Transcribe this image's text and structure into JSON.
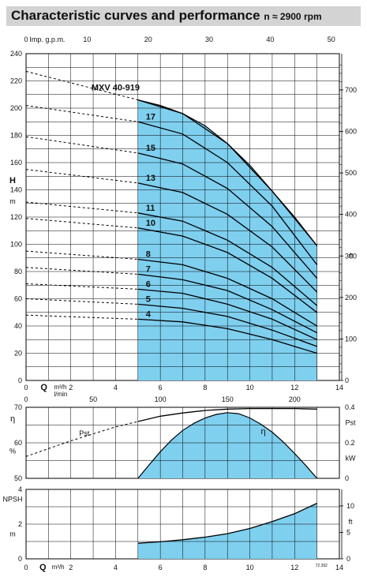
{
  "header": {
    "title": "Characteristic curves and performance",
    "speed": "n ≈ 2900 rpm"
  },
  "colors": {
    "fill": "#7fcfef",
    "grid": "#000000",
    "curve": "#000000",
    "header_bg": "#d3d3d3"
  },
  "chart_data": [
    {
      "type": "line",
      "name": "head",
      "model_label": "MXV 40-919",
      "xlabel": "Q",
      "xlim": [
        0,
        14
      ],
      "x_ticks": [
        0,
        2,
        4,
        6,
        8,
        10,
        12,
        14
      ],
      "top_axis_label": "Imp. g.p.m.",
      "top_ticks": [
        0,
        10,
        20,
        30,
        40,
        50
      ],
      "ylabel": "H",
      "yunit": "m",
      "ylim": [
        0,
        240
      ],
      "y_ticks": [
        0,
        20,
        40,
        60,
        80,
        100,
        120,
        140,
        160,
        180,
        200,
        220,
        240
      ],
      "right_axis_label": "ft",
      "right_ticks": [
        0,
        100,
        200,
        300,
        400,
        500,
        600,
        700
      ],
      "operating_range": [
        5,
        13
      ],
      "series": [
        {
          "name": "4",
          "x": [
            0,
            5,
            7,
            9,
            11,
            13
          ],
          "y": [
            48,
            45,
            43,
            38,
            30,
            20
          ]
        },
        {
          "name": "5",
          "x": [
            0,
            5,
            7,
            9,
            11,
            13
          ],
          "y": [
            60,
            56,
            53,
            47,
            37,
            25
          ]
        },
        {
          "name": "6",
          "x": [
            0,
            5,
            7,
            9,
            11,
            13
          ],
          "y": [
            71,
            67,
            64,
            56,
            45,
            30
          ]
        },
        {
          "name": "7",
          "x": [
            0,
            5,
            7,
            9,
            11,
            13
          ],
          "y": [
            83,
            78,
            74,
            66,
            52,
            35
          ]
        },
        {
          "name": "8",
          "x": [
            0,
            5,
            7,
            9,
            11,
            13
          ],
          "y": [
            95,
            89,
            85,
            75,
            60,
            40
          ]
        },
        {
          "name": "10",
          "x": [
            0,
            5,
            7,
            9,
            11,
            13
          ],
          "y": [
            119,
            112,
            106,
            94,
            75,
            50
          ]
        },
        {
          "name": "11",
          "x": [
            0,
            5,
            7,
            9,
            11,
            13
          ],
          "y": [
            131,
            123,
            117,
            103,
            83,
            55
          ]
        },
        {
          "name": "13",
          "x": [
            0,
            5,
            7,
            9,
            11,
            13
          ],
          "y": [
            155,
            145,
            138,
            122,
            98,
            65
          ]
        },
        {
          "name": "15",
          "x": [
            0,
            5,
            7,
            9,
            11,
            13
          ],
          "y": [
            179,
            167,
            159,
            141,
            113,
            75
          ]
        },
        {
          "name": "17",
          "x": [
            0,
            5,
            7,
            9,
            11,
            13
          ],
          "y": [
            202,
            190,
            181,
            160,
            128,
            85
          ]
        },
        {
          "name": "MXV 40-919",
          "x": [
            0,
            5,
            7,
            9,
            11,
            13
          ],
          "y": [
            227,
            206,
            196,
            174,
            139,
            99
          ]
        }
      ]
    },
    {
      "type": "line",
      "name": "efficiency-power",
      "xlabel": "Q",
      "xunit_top": "m³/h",
      "xunit_bottom": "l/min",
      "x2_ticks": [
        0,
        50,
        100,
        150,
        200
      ],
      "y_left_label": "η",
      "y_left_unit": "%",
      "y_left_ticks": [
        50,
        60,
        70
      ],
      "y_right_label": "Pst",
      "y_right_unit": "kW",
      "y_right_ticks": [
        0,
        0.2,
        0.4
      ],
      "series": [
        {
          "name": "η",
          "x": [
            5,
            6,
            7,
            8,
            9,
            10,
            11,
            12,
            13
          ],
          "y": [
            50,
            57.5,
            63.5,
            67,
            68.5,
            67,
            63,
            57,
            50
          ]
        },
        {
          "name": "Pst",
          "x": [
            0,
            2,
            4,
            5,
            6,
            7,
            8,
            9,
            10,
            11,
            12,
            13
          ],
          "y": [
            0.123,
            0.211,
            0.29,
            0.32,
            0.35,
            0.368,
            0.382,
            0.39,
            0.393,
            0.393,
            0.393,
            0.39
          ]
        }
      ]
    },
    {
      "type": "area",
      "name": "npsh",
      "xlabel": "Q",
      "xunit": "m³/h",
      "ylabel": "NPSH",
      "yunit": "m",
      "ylim": [
        0,
        4
      ],
      "y_ticks": [
        0,
        2,
        4
      ],
      "right_axis_label": "ft",
      "right_ticks": [
        0,
        5,
        10
      ],
      "footnote": "72.392",
      "x": [
        5,
        7,
        9,
        10,
        11,
        12,
        13
      ],
      "y": [
        0.9,
        1.1,
        1.45,
        1.75,
        2.15,
        2.6,
        3.2
      ]
    }
  ]
}
